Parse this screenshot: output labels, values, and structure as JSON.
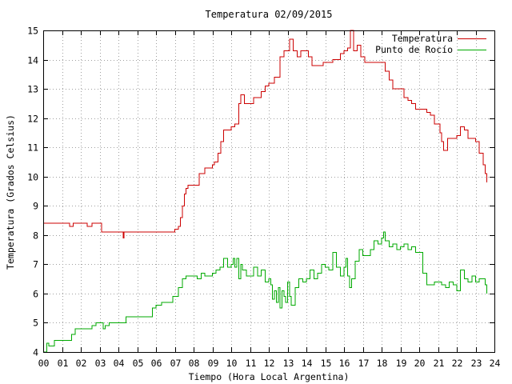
{
  "chart_data": {
    "type": "line",
    "title": "Temperatura 02/09/2015",
    "xlabel": "Tiempo (Hora Local Argentina)",
    "ylabel": "Temperatura (Grados Celsius)",
    "xlim": [
      0,
      24
    ],
    "ylim": [
      4,
      15
    ],
    "xticks": [
      0,
      1,
      2,
      3,
      4,
      5,
      6,
      7,
      8,
      9,
      10,
      11,
      12,
      13,
      14,
      15,
      16,
      17,
      18,
      19,
      20,
      21,
      22,
      23,
      24
    ],
    "xtick_labels": [
      "00",
      "01",
      "02",
      "03",
      "04",
      "05",
      "06",
      "07",
      "08",
      "09",
      "10",
      "11",
      "12",
      "13",
      "14",
      "15",
      "16",
      "17",
      "18",
      "19",
      "20",
      "21",
      "22",
      "23",
      "24"
    ],
    "yticks": [
      4,
      5,
      6,
      7,
      8,
      9,
      10,
      11,
      12,
      13,
      14,
      15
    ],
    "ytick_labels": [
      "4",
      "5",
      "6",
      "7",
      "8",
      "9",
      "10",
      "11",
      "12",
      "13",
      "14",
      "15"
    ],
    "grid": true,
    "legend_position": "top-right",
    "series": [
      {
        "name": "Temperatura",
        "color": "#cc0000",
        "x": [
          0,
          1.3,
          1.4,
          1.55,
          1.6,
          2.3,
          2.35,
          2.55,
          2.6,
          3.0,
          3.1,
          4.2,
          4.25,
          4.3,
          4.35,
          5.0,
          6.0,
          6.95,
          7.0,
          7.1,
          7.2,
          7.3,
          7.4,
          7.5,
          7.6,
          7.7,
          8.0,
          8.3,
          8.6,
          9.0,
          9.1,
          9.3,
          9.45,
          9.6,
          10.0,
          10.2,
          10.4,
          10.5,
          10.7,
          11.0,
          11.2,
          11.4,
          11.6,
          11.8,
          12.0,
          12.1,
          12.3,
          12.6,
          12.8,
          13.0,
          13.1,
          13.3,
          13.5,
          13.7,
          13.9,
          14.1,
          14.3,
          14.6,
          14.9,
          15.1,
          15.4,
          15.8,
          16.0,
          16.2,
          16.35,
          16.5,
          16.7,
          16.9,
          17.1,
          17.4,
          17.8,
          18.2,
          18.4,
          18.6,
          19.0,
          19.2,
          19.4,
          19.6,
          19.8,
          20.0,
          20.4,
          20.6,
          20.8,
          21.0,
          21.1,
          21.2,
          21.3,
          21.5,
          21.8,
          22.0,
          22.2,
          22.4,
          22.6,
          22.8,
          23.0,
          23.2,
          23.4,
          23.5,
          23.6
        ],
        "y": [
          8.4,
          8.4,
          8.3,
          8.3,
          8.4,
          8.4,
          8.3,
          8.3,
          8.4,
          8.4,
          8.1,
          8.1,
          7.9,
          8.1,
          8.1,
          8.1,
          8.1,
          8.1,
          8.2,
          8.2,
          8.3,
          8.6,
          9.0,
          9.4,
          9.6,
          9.7,
          9.7,
          10.1,
          10.3,
          10.4,
          10.5,
          10.8,
          11.2,
          11.6,
          11.7,
          11.8,
          12.5,
          12.8,
          12.5,
          12.5,
          12.7,
          12.7,
          12.9,
          13.1,
          13.2,
          13.2,
          13.4,
          14.1,
          14.3,
          14.3,
          14.7,
          14.3,
          14.1,
          14.3,
          14.3,
          14.1,
          13.8,
          13.8,
          13.9,
          13.9,
          14.0,
          14.2,
          14.3,
          14.4,
          15.0,
          14.3,
          14.5,
          14.1,
          13.9,
          13.9,
          13.9,
          13.6,
          13.3,
          13.0,
          13.0,
          12.7,
          12.6,
          12.5,
          12.3,
          12.3,
          12.2,
          12.1,
          11.8,
          11.8,
          11.5,
          11.2,
          10.9,
          11.3,
          11.3,
          11.4,
          11.7,
          11.6,
          11.3,
          11.3,
          11.2,
          10.8,
          10.4,
          10.1,
          9.8
        ]
      },
      {
        "name": "Punto de Rocío",
        "color": "#00aa00",
        "x": [
          0,
          0.2,
          0.3,
          0.5,
          0.6,
          0.8,
          1.5,
          1.7,
          2.4,
          2.6,
          2.8,
          3.0,
          3.2,
          3.3,
          3.5,
          4.2,
          4.4,
          5.5,
          5.8,
          6.0,
          6.3,
          6.6,
          6.9,
          7.0,
          7.2,
          7.4,
          7.6,
          8.0,
          8.2,
          8.4,
          8.6,
          8.8,
          9.0,
          9.2,
          9.4,
          9.6,
          9.8,
          10.0,
          10.1,
          10.2,
          10.3,
          10.4,
          10.5,
          10.6,
          10.8,
          11.0,
          11.2,
          11.4,
          11.6,
          11.8,
          12.0,
          12.1,
          12.2,
          12.3,
          12.4,
          12.5,
          12.6,
          12.7,
          12.8,
          12.9,
          13.0,
          13.1,
          13.2,
          13.4,
          13.6,
          13.8,
          14.0,
          14.2,
          14.4,
          14.6,
          14.8,
          15.0,
          15.2,
          15.4,
          15.6,
          15.8,
          16.0,
          16.1,
          16.2,
          16.3,
          16.4,
          16.6,
          16.8,
          17.0,
          17.2,
          17.4,
          17.6,
          17.8,
          18.0,
          18.1,
          18.2,
          18.4,
          18.6,
          18.8,
          19.0,
          19.2,
          19.4,
          19.6,
          19.8,
          20.0,
          20.2,
          20.4,
          20.6,
          20.8,
          21.0,
          21.2,
          21.4,
          21.6,
          21.8,
          22.0,
          22.2,
          22.4,
          22.6,
          22.8,
          23.0,
          23.2,
          23.4,
          23.5,
          23.6
        ],
        "y": [
          4.0,
          4.3,
          4.2,
          4.2,
          4.4,
          4.4,
          4.6,
          4.8,
          4.8,
          4.9,
          5.0,
          5.0,
          4.8,
          4.9,
          5.0,
          5.0,
          5.2,
          5.2,
          5.5,
          5.6,
          5.7,
          5.7,
          5.9,
          5.9,
          6.2,
          6.5,
          6.6,
          6.6,
          6.5,
          6.7,
          6.6,
          6.6,
          6.7,
          6.8,
          6.9,
          7.2,
          6.9,
          7.0,
          7.2,
          6.9,
          7.2,
          6.5,
          7.0,
          6.8,
          6.6,
          6.6,
          6.9,
          6.6,
          6.8,
          6.4,
          6.5,
          6.3,
          5.8,
          6.1,
          5.7,
          6.2,
          5.5,
          6.1,
          5.9,
          5.7,
          6.4,
          5.9,
          5.6,
          6.2,
          6.5,
          6.4,
          6.5,
          6.8,
          6.5,
          6.7,
          7.0,
          6.9,
          6.8,
          7.4,
          6.9,
          6.6,
          6.9,
          7.2,
          6.6,
          6.2,
          6.5,
          7.1,
          7.5,
          7.3,
          7.3,
          7.5,
          7.8,
          7.7,
          7.9,
          8.1,
          7.8,
          7.6,
          7.7,
          7.5,
          7.6,
          7.7,
          7.5,
          7.6,
          7.4,
          7.4,
          6.7,
          6.3,
          6.3,
          6.4,
          6.4,
          6.3,
          6.2,
          6.4,
          6.3,
          6.1,
          6.8,
          6.5,
          6.4,
          6.6,
          6.4,
          6.5,
          6.5,
          6.3,
          6.0
        ]
      }
    ]
  }
}
